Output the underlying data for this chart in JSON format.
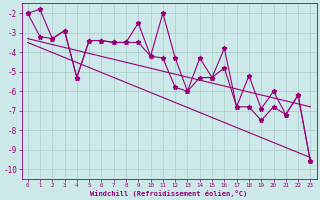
{
  "xlabel": "Windchill (Refroidissement éolien,°C)",
  "xlim": [
    -0.5,
    23.5
  ],
  "ylim": [
    -10.5,
    -1.5
  ],
  "yticks": [
    -10,
    -9,
    -8,
    -7,
    -6,
    -5,
    -4,
    -3,
    -2
  ],
  "xticks": [
    0,
    1,
    2,
    3,
    4,
    5,
    6,
    7,
    8,
    9,
    10,
    11,
    12,
    13,
    14,
    15,
    16,
    17,
    18,
    19,
    20,
    21,
    22,
    23
  ],
  "bg_color": "#cce8e8",
  "line_color": "#990077",
  "grid_color": "#aacccc",
  "series1_x": [
    0,
    1,
    2,
    3,
    4,
    5,
    6,
    7,
    8,
    9,
    10,
    11,
    12,
    13,
    14,
    15,
    16,
    17,
    18,
    19,
    20,
    21,
    22,
    23
  ],
  "series1_y": [
    -2.0,
    -1.8,
    -3.3,
    -2.9,
    -5.3,
    -3.4,
    -3.4,
    -3.5,
    -3.5,
    -2.5,
    -4.2,
    -2.0,
    -4.3,
    -6.0,
    -4.3,
    -5.3,
    -3.8,
    -6.8,
    -5.2,
    -6.9,
    -6.0,
    -7.2,
    -6.2,
    -9.6
  ],
  "series2_x": [
    0,
    1,
    2,
    3,
    4,
    5,
    6,
    7,
    8,
    9,
    10,
    11,
    12,
    13,
    14,
    15,
    16,
    17,
    18,
    19,
    20,
    21,
    22,
    23
  ],
  "series2_y": [
    -2.0,
    -3.2,
    -3.3,
    -2.9,
    -5.3,
    -3.4,
    -3.4,
    -3.5,
    -3.5,
    -3.5,
    -4.2,
    -4.3,
    -5.8,
    -6.0,
    -5.3,
    -5.3,
    -4.8,
    -6.8,
    -6.8,
    -7.5,
    -6.8,
    -7.2,
    -6.2,
    -9.6
  ],
  "trend1_x": [
    0,
    23
  ],
  "trend1_y": [
    -3.3,
    -6.8
  ],
  "trend2_x": [
    0,
    23
  ],
  "trend2_y": [
    -3.5,
    -9.4
  ],
  "marker": "*",
  "markersize": 3.5
}
